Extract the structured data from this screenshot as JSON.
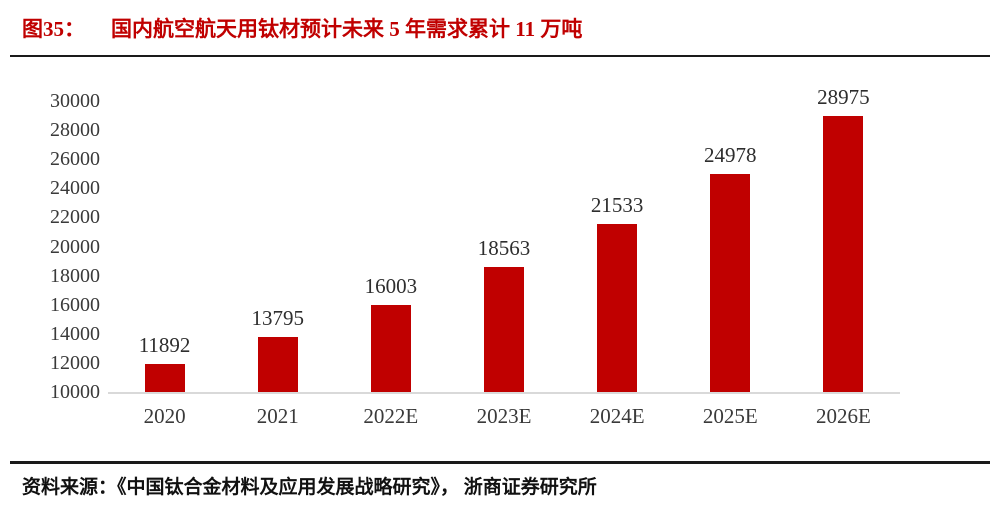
{
  "header": {
    "figure_label": "图35：",
    "title": "国内航空航天用钛材预计未来 5 年需求累计 11 万吨"
  },
  "footer": {
    "source": "资料来源：《中国钛合金材料及应用发展战略研究》， 浙商证券研究所"
  },
  "colors": {
    "bar": "#c00000",
    "title": "#c00000",
    "baseline": "#d9d9d9",
    "axis_label": "#3a3a3a",
    "value_label": "#2e2e2e",
    "rule": "#1a1a1a"
  },
  "chart_data": {
    "type": "bar",
    "categories": [
      "2020",
      "2021",
      "2022E",
      "2023E",
      "2024E",
      "2025E",
      "2026E"
    ],
    "values": [
      11892,
      13795,
      16003,
      18563,
      21533,
      24978,
      28975
    ],
    "title": "国内航空航天用钛材预计未来 5 年需求累计 11 万吨",
    "xlabel": "",
    "ylabel": "",
    "ylim": [
      10000,
      30000
    ],
    "ytick_step": 2000,
    "yticks": [
      10000,
      12000,
      14000,
      16000,
      18000,
      20000,
      22000,
      24000,
      26000,
      28000,
      30000
    ],
    "grid": false,
    "legend": false,
    "data_labels": true,
    "bar_color": "#c00000"
  }
}
